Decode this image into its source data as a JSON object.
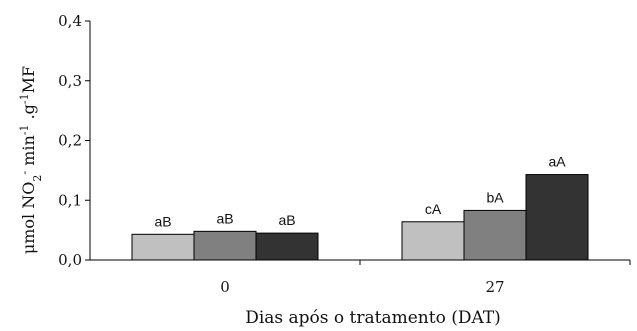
{
  "chart_data": {
    "type": "bar",
    "categories": [
      "0",
      "27"
    ],
    "series": [
      {
        "values": [
          0.043,
          0.064
        ],
        "labels": [
          "aB",
          "cA"
        ],
        "color": "#c0c0c0"
      },
      {
        "values": [
          0.048,
          0.083
        ],
        "labels": [
          "aB",
          "bA"
        ],
        "color": "#808080"
      },
      {
        "values": [
          0.045,
          0.143
        ],
        "labels": [
          "aB",
          "aA"
        ],
        "color": "#333333"
      }
    ],
    "y_ticks": [
      "0,0",
      "0,1",
      "0,2",
      "0,3",
      "0,4"
    ],
    "ylim": [
      0,
      0.4
    ],
    "xlabel": "Dias após o tratamento (DAT)",
    "ylabel": {
      "base": "μmol NO",
      "sub": "2",
      "sup_minus": "-",
      "middle": " min",
      "sup_min": "-1",
      "dot": " .g",
      "sup_g": "-1",
      "end": "MF"
    },
    "grid": false,
    "legend": "none"
  }
}
